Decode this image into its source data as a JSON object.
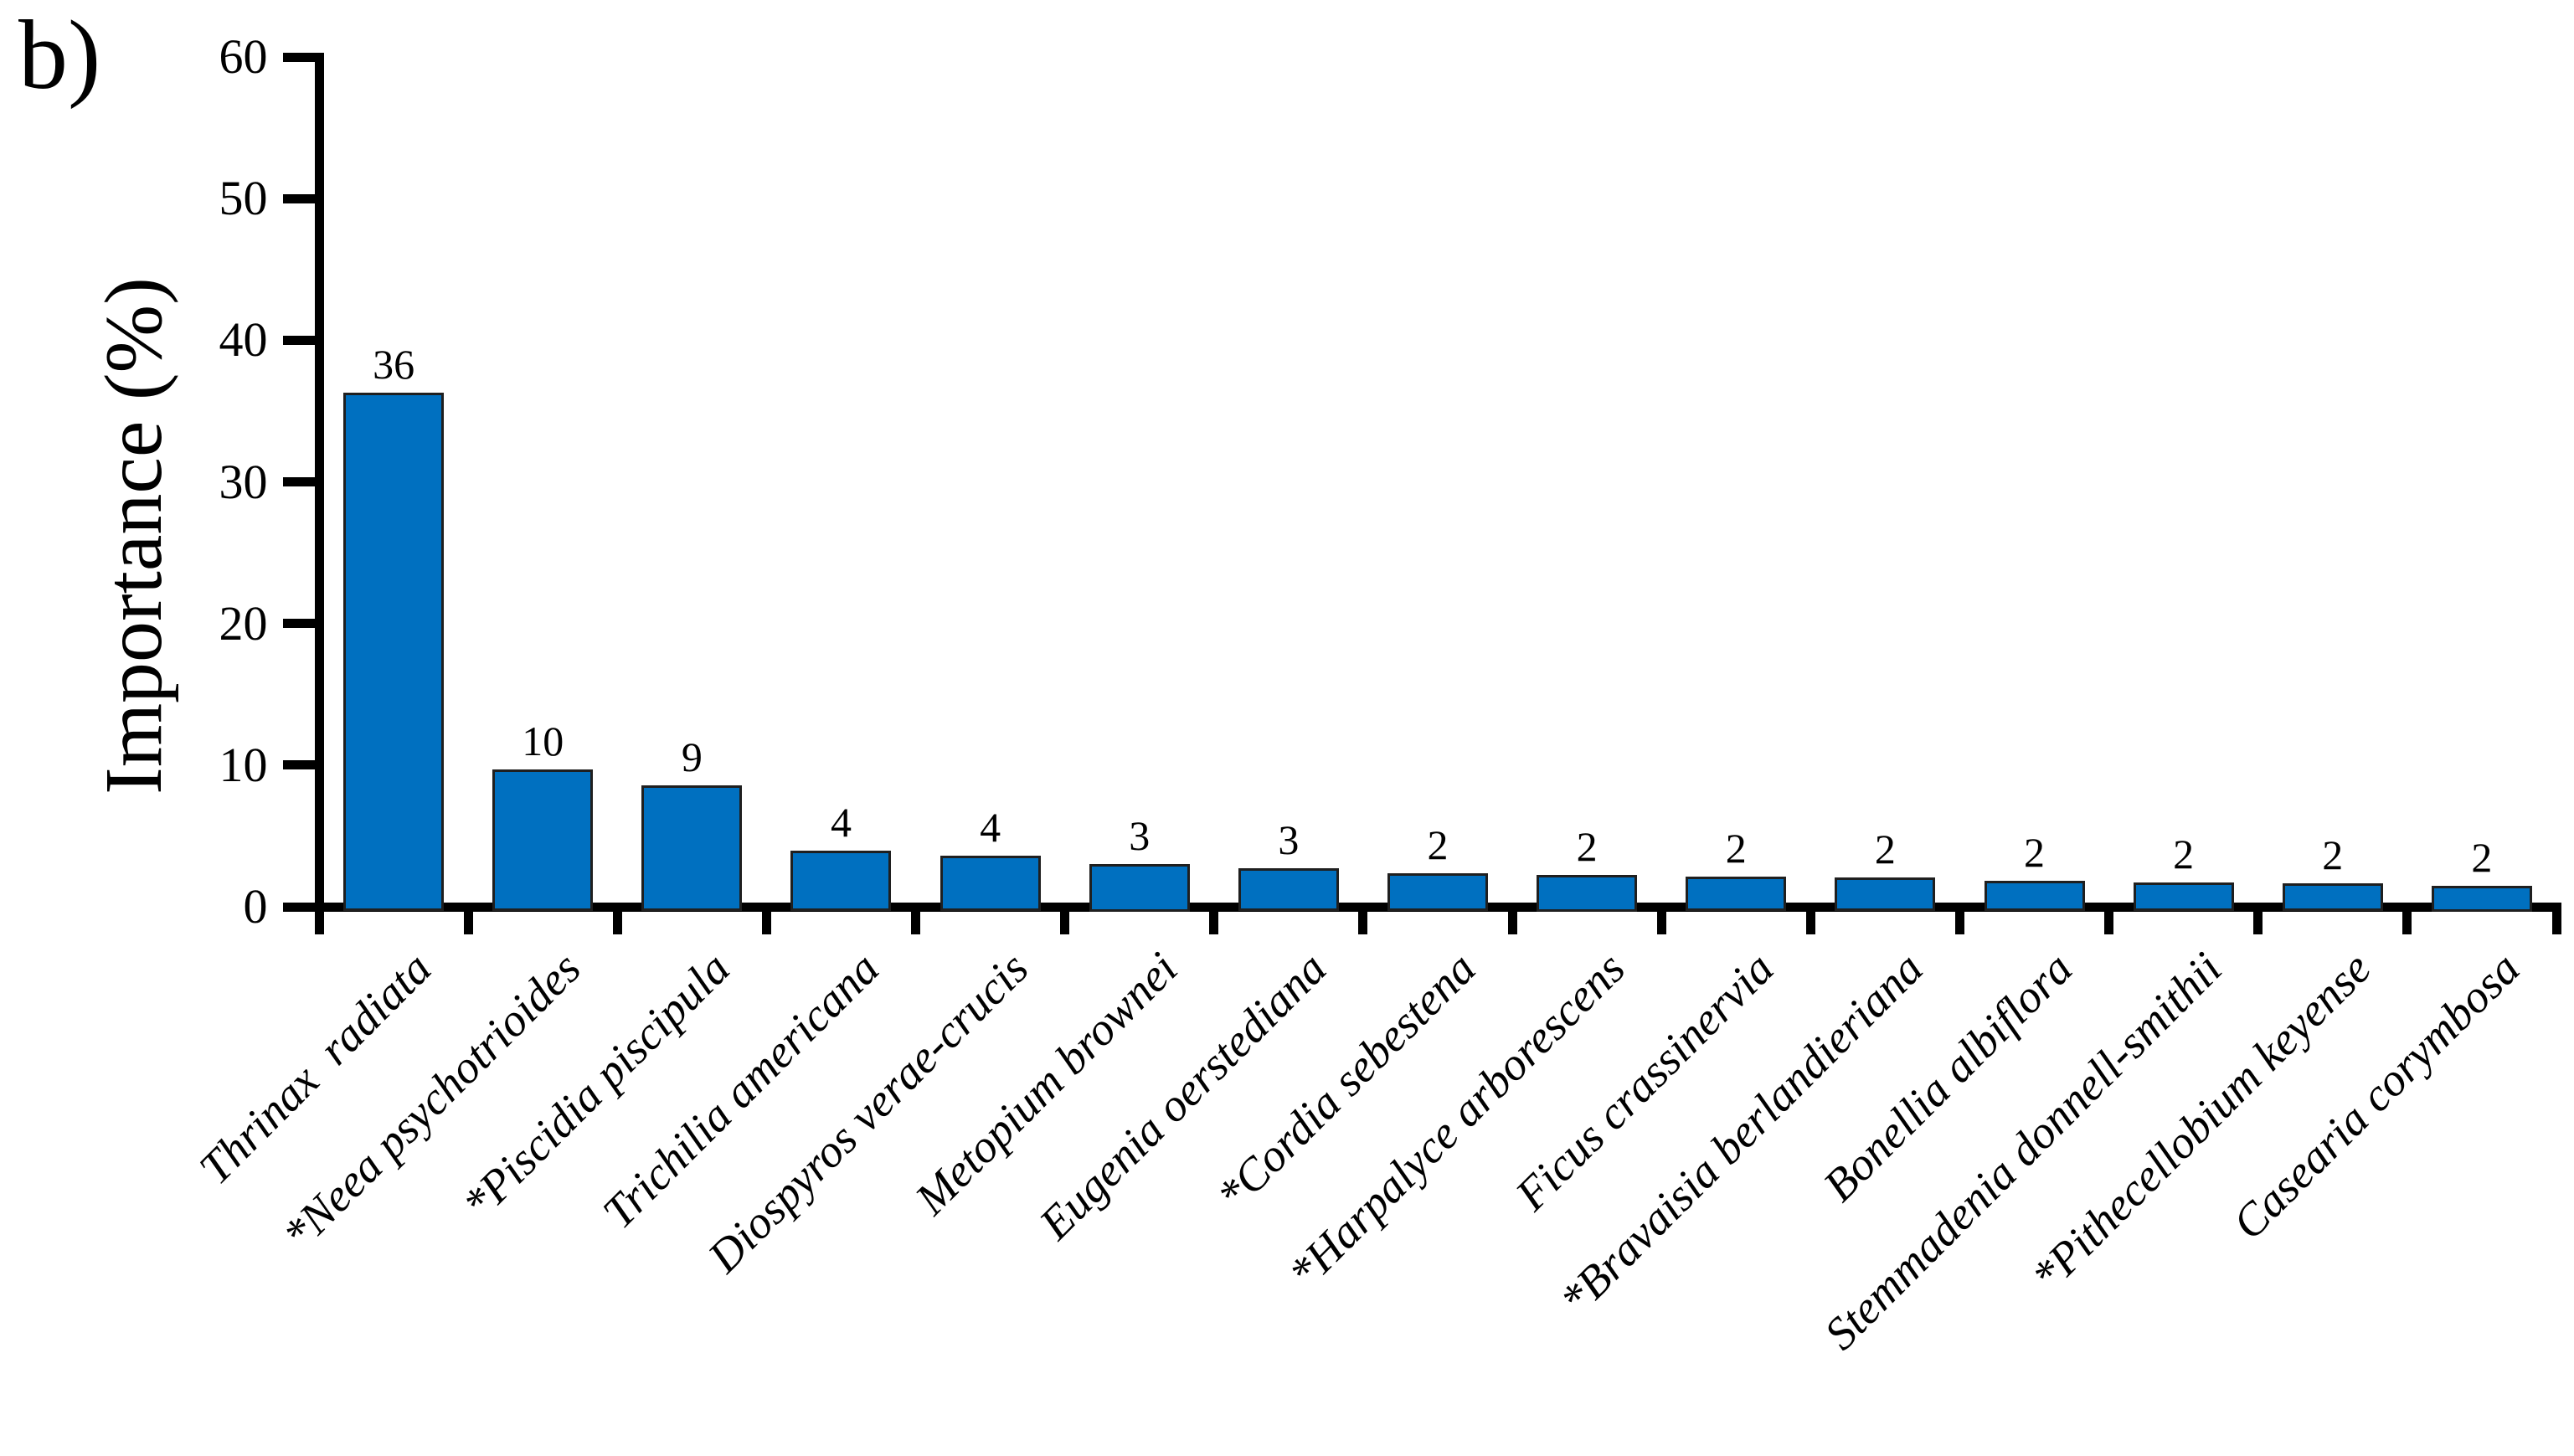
{
  "panel_label": "b)",
  "chart_data": {
    "type": "bar",
    "title": "",
    "xlabel": "",
    "ylabel": "Importance (%)",
    "ylim": [
      0,
      60
    ],
    "yticks": [
      0,
      10,
      20,
      30,
      40,
      50,
      60
    ],
    "grid": false,
    "legend": "none",
    "bar_labels_shown": true,
    "category_label_rotation_deg": 45,
    "category_label_style": "italic",
    "bar_color": "#0070C0",
    "bar_border_color": "#1f1f1f",
    "axis_color": "#000000",
    "categories": [
      "Thrinax  radiata",
      "*Neea psychotrioides",
      "*Piscidia piscipula",
      "Trichilia americana",
      "Diospyros verae-crucis",
      "Metopium brownei",
      "Eugenia oerstediana",
      "*Cordia sebestena",
      "*Harpalyce arborescens",
      "Ficus crassinervia",
      "*Bravaisia berlandieriana",
      "Bonellia albiflora",
      "Stemmadenia donnell-smithii",
      "*Pithecellobium keyense",
      "Casearia corymbosa"
    ],
    "values": [
      36,
      10,
      9,
      4,
      4,
      3,
      3,
      2,
      2,
      2,
      2,
      2,
      2,
      2,
      2
    ],
    "bar_heights_pct": [
      36.3,
      9.7,
      8.6,
      3.95,
      3.6,
      3.0,
      2.7,
      2.35,
      2.25,
      2.1,
      2.05,
      1.85,
      1.7,
      1.65,
      1.5
    ]
  }
}
